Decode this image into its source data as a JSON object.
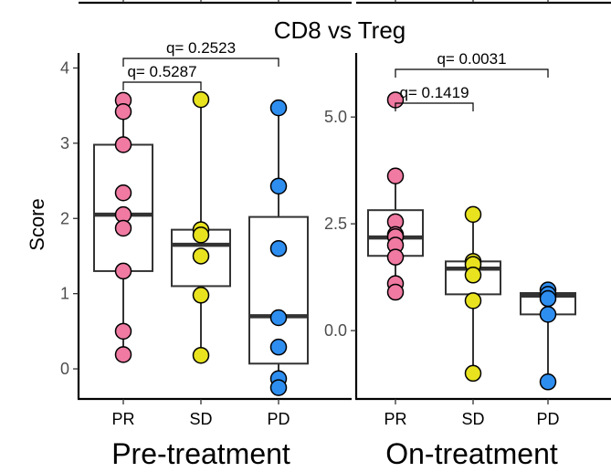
{
  "title": "CD8 vs Treg",
  "ylabel": "Score",
  "colors": {
    "PR": "#f07aa2",
    "SD": "#e8e21f",
    "PD": "#2e8ef0"
  },
  "chart_data": [
    {
      "type": "box",
      "panel_label": "Pre-treatment",
      "categories": [
        "PR",
        "SD",
        "PD"
      ],
      "ylim": [
        -0.4,
        4.2
      ],
      "yticks": [
        0,
        1,
        2,
        3,
        4
      ],
      "ytick_labels": [
        "0",
        "1",
        "2",
        "3",
        "4"
      ],
      "boxes": [
        {
          "category": "PR",
          "lower_whisker": 0.18,
          "q1": 1.3,
          "median": 2.05,
          "q3": 2.98,
          "upper_whisker": 3.57
        },
        {
          "category": "SD",
          "lower_whisker": 0.18,
          "q1": 1.1,
          "median": 1.65,
          "q3": 1.85,
          "upper_whisker": 3.58
        },
        {
          "category": "PD",
          "lower_whisker": -0.25,
          "q1": 0.07,
          "median": 0.7,
          "q3": 2.02,
          "upper_whisker": 3.47
        }
      ],
      "points": [
        {
          "category": "PR",
          "values": [
            3.57,
            3.42,
            2.98,
            2.34,
            2.05,
            1.87,
            1.3,
            0.5,
            0.19
          ]
        },
        {
          "category": "SD",
          "values": [
            3.58,
            1.85,
            1.78,
            1.5,
            0.98,
            0.18
          ]
        },
        {
          "category": "PD",
          "values": [
            3.47,
            2.43,
            1.6,
            0.68,
            0.29,
            -0.13,
            -0.25
          ]
        }
      ],
      "comparisons": [
        {
          "pair": [
            "PR",
            "SD"
          ],
          "label": "q= 0.5287"
        },
        {
          "pair": [
            "PR",
            "PD"
          ],
          "label": "q= 0.2523"
        }
      ]
    },
    {
      "type": "box",
      "panel_label": "On-treatment",
      "categories": [
        "PR",
        "SD",
        "PD"
      ],
      "ylim": [
        -1.6,
        6.5
      ],
      "yticks": [
        0,
        2.5,
        5
      ],
      "ytick_labels": [
        "0.0",
        "2.5",
        "5.0"
      ],
      "boxes": [
        {
          "category": "PR",
          "lower_whisker": 0.9,
          "q1": 1.75,
          "median": 2.18,
          "q3": 2.82,
          "upper_whisker": 3.62
        },
        {
          "category": "SD",
          "lower_whisker": -1.0,
          "q1": 0.85,
          "median": 1.45,
          "q3": 1.62,
          "upper_whisker": 2.72
        },
        {
          "category": "PD",
          "lower_whisker": -1.2,
          "q1": 0.38,
          "median": 0.82,
          "q3": 0.88,
          "upper_whisker": 1.0
        }
      ],
      "points": [
        {
          "category": "PR",
          "values": [
            5.4,
            3.62,
            2.55,
            2.25,
            2.2,
            2.0,
            1.72,
            1.1,
            0.9
          ]
        },
        {
          "category": "SD",
          "values": [
            2.72,
            1.62,
            1.55,
            1.3,
            0.7,
            -1.0
          ]
        },
        {
          "category": "PD",
          "values": [
            0.95,
            0.85,
            0.75,
            0.38,
            -1.2
          ]
        }
      ],
      "comparisons": [
        {
          "pair": [
            "PR",
            "SD"
          ],
          "label": "q= 0.1419"
        },
        {
          "pair": [
            "PR",
            "PD"
          ],
          "label": "q= 0.0031"
        }
      ]
    }
  ]
}
